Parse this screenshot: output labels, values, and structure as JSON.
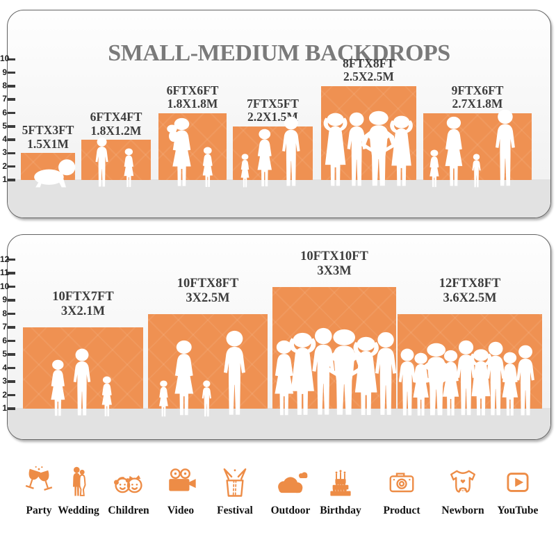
{
  "title": "SMALL-MEDIUM BACKDROPS",
  "colors": {
    "backdrop_orange": "#EF9152",
    "icon_orange": "#ED8C46",
    "title_gray": "#7A7A7A",
    "label_gray": "#3D3D3D",
    "card_band_gray": "#E2E2E2"
  },
  "panels": [
    {
      "name": "top-size-panel",
      "ruler": {
        "ticks": [
          1,
          2,
          3,
          4,
          5,
          6,
          7,
          8,
          9,
          10
        ]
      },
      "boxes": [
        {
          "ft": "5FTX3FT",
          "m": "1.5X1M",
          "width_ft": 5,
          "height_ft": 3,
          "scene": "crawling baby"
        },
        {
          "ft": "6FTX4FT",
          "m": "1.8X1.2M",
          "width_ft": 6,
          "height_ft": 4,
          "scene": "boy and girl"
        },
        {
          "ft": "6FTX6FT",
          "m": "1.8X1.8M",
          "width_ft": 6,
          "height_ft": 6,
          "scene": "mother holding baby with toddler girl"
        },
        {
          "ft": "7FTX5FT",
          "m": "2.2X1.5M",
          "width_ft": 7,
          "height_ft": 5,
          "scene": "toddler, woman and man"
        },
        {
          "ft": "8FTX8FT",
          "m": "2.5X2.5M",
          "width_ft": 8,
          "height_ft": 8,
          "scene": "four posing adults"
        },
        {
          "ft": "9FTX6FT",
          "m": "2.7X1.8M",
          "width_ft": 9,
          "height_ft": 6,
          "scene": "family of four holding hands"
        }
      ]
    },
    {
      "name": "bottom-size-panel",
      "ruler": {
        "ticks": [
          1,
          2,
          3,
          4,
          5,
          6,
          7,
          8,
          9,
          10,
          11,
          12
        ]
      },
      "boxes": [
        {
          "ft": "10FTX7FT",
          "m": "3X2.1M",
          "width_ft": 10,
          "height_ft": 7,
          "scene": "woman, man and girl"
        },
        {
          "ft": "10FTX8FT",
          "m": "3X2.5M",
          "width_ft": 10,
          "height_ft": 8,
          "scene": "family of four holding hands"
        },
        {
          "ft": "10FTX10FT",
          "m": "3X3M",
          "width_ft": 10,
          "height_ft": 10,
          "scene": "six posing adults"
        },
        {
          "ft": "12FTX8FT",
          "m": "3.6X2.5M",
          "width_ft": 12,
          "height_ft": 8,
          "scene": "crowd of nine people"
        }
      ]
    }
  ],
  "categories": [
    {
      "label": "Party",
      "icon": "party-icon"
    },
    {
      "label": "Wedding",
      "icon": "wedding-icon"
    },
    {
      "label": "Children",
      "icon": "children-icon"
    },
    {
      "label": "Video",
      "icon": "video-icon"
    },
    {
      "label": "Festival",
      "icon": "festival-icon"
    },
    {
      "label": "Outdoor",
      "icon": "outdoor-icon"
    },
    {
      "label": "Birthday",
      "icon": "birthday-icon"
    },
    {
      "label": "Product",
      "icon": "product-icon"
    },
    {
      "label": "Newborn",
      "icon": "newborn-icon"
    },
    {
      "label": "YouTube",
      "icon": "youtube-icon"
    }
  ]
}
